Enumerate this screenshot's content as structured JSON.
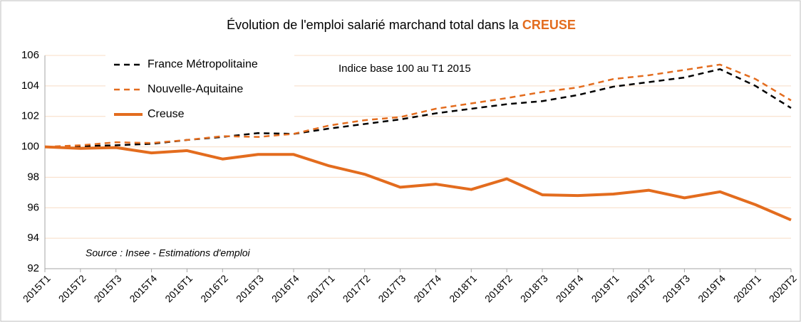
{
  "chart_data": {
    "type": "line",
    "title": "Évolution de l'emploi salarié marchand total dans la",
    "title_highlight": "CREUSE",
    "annotation": "Indice base 100 au T1 2015",
    "source": "Source : Insee - Estimations d'emploi",
    "categories": [
      "2015T1",
      "2015T2",
      "2015T3",
      "2015T4",
      "2016T1",
      "2016T2",
      "2016T3",
      "2016T4",
      "2017T1",
      "2017T2",
      "2017T3",
      "2017T4",
      "2018T1",
      "2018T2",
      "2018T3",
      "2018T4",
      "2019T1",
      "2019T2",
      "2019T3",
      "2019T4",
      "2020T1",
      "2020T2"
    ],
    "series": [
      {
        "name": "France Métropolitaine",
        "color": "#000000",
        "dash": true,
        "values": [
          100,
          100.05,
          100.1,
          100.2,
          100.45,
          100.65,
          100.9,
          100.85,
          101.2,
          101.5,
          101.8,
          102.2,
          102.5,
          102.8,
          103.0,
          103.4,
          103.95,
          104.25,
          104.55,
          105.1,
          104.0,
          102.55
        ]
      },
      {
        "name": "Nouvelle-Aquitaine",
        "color": "#e36c1e",
        "dash": true,
        "values": [
          100,
          100.1,
          100.3,
          100.25,
          100.45,
          100.7,
          100.65,
          100.85,
          101.4,
          101.75,
          101.95,
          102.5,
          102.85,
          103.2,
          103.6,
          103.9,
          104.45,
          104.7,
          105.05,
          105.4,
          104.45,
          103.05
        ]
      },
      {
        "name": "Creuse",
        "color": "#e36c1e",
        "dash": false,
        "values": [
          100,
          99.9,
          99.95,
          99.6,
          99.75,
          99.2,
          99.5,
          99.5,
          98.75,
          98.2,
          97.35,
          97.55,
          97.2,
          97.9,
          96.85,
          96.8,
          96.9,
          97.15,
          96.65,
          97.05,
          96.2,
          95.2
        ]
      }
    ],
    "ylim": [
      92,
      106
    ],
    "yticks": [
      92,
      94,
      96,
      98,
      100,
      102,
      104,
      106
    ],
    "grid": true
  }
}
